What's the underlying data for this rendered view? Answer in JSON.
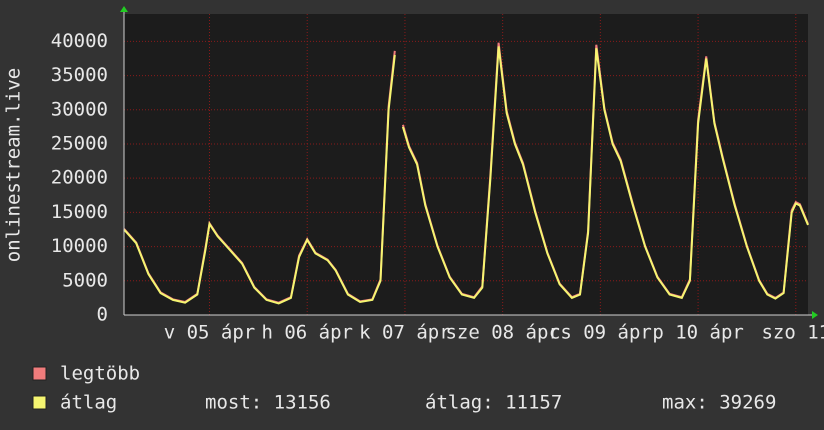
{
  "chart_data": {
    "type": "line",
    "ylabel": "onlinestream.live",
    "x": [
      0,
      3,
      6,
      9,
      12,
      15,
      18,
      20,
      21,
      23,
      26,
      29,
      32,
      35,
      38,
      41,
      43,
      45,
      47,
      50,
      52,
      55,
      58,
      61,
      63,
      65,
      66.5,
      67,
      68.5,
      70,
      72,
      74,
      77,
      80,
      83,
      86,
      88,
      90,
      92,
      94,
      96,
      98,
      101,
      104,
      107,
      110,
      112,
      114,
      116,
      118,
      120,
      122,
      125,
      128,
      131,
      134,
      137,
      139,
      141,
      143,
      145,
      147,
      150,
      153,
      156,
      158,
      160,
      162,
      163,
      164,
      165,
      166,
      168
    ],
    "series": [
      {
        "name": "legtöbb",
        "color": "#f07c7c",
        "values": [
          12600,
          10600,
          6100,
          3300,
          2300,
          1900,
          3100,
          9800,
          13400,
          11600,
          9600,
          7600,
          4100,
          2300,
          1800,
          2600,
          8700,
          11100,
          9100,
          8100,
          6600,
          3100,
          2000,
          2300,
          5200,
          30500,
          38600,
          null,
          27800,
          24700,
          22200,
          16200,
          10100,
          5600,
          3100,
          2600,
          4200,
          20500,
          39800,
          29800,
          25200,
          22200,
          15200,
          9100,
          4600,
          2600,
          3100,
          12300,
          39500,
          30200,
          25200,
          22700,
          16200,
          10100,
          5600,
          3100,
          2600,
          5200,
          28500,
          37800,
          28200,
          23200,
          16200,
          10100,
          5100,
          3100,
          2500,
          3300,
          9300,
          15300,
          16500,
          16200,
          13300
        ]
      },
      {
        "name": "átlag",
        "color": "#f5f571",
        "values": [
          12500,
          10500,
          6000,
          3200,
          2200,
          1800,
          3000,
          9500,
          13300,
          11500,
          9500,
          7500,
          4000,
          2200,
          1700,
          2500,
          8500,
          11000,
          9000,
          8000,
          6500,
          3000,
          1900,
          2200,
          5000,
          30000,
          38000,
          null,
          27500,
          24500,
          22000,
          16000,
          10000,
          5500,
          3000,
          2500,
          4000,
          20000,
          39269,
          29500,
          25000,
          22000,
          15000,
          9000,
          4500,
          2500,
          3000,
          12000,
          39000,
          30000,
          25000,
          22500,
          16000,
          10000,
          5500,
          3000,
          2500,
          5000,
          28000,
          37500,
          28000,
          23000,
          16000,
          10000,
          5000,
          3000,
          2400,
          3200,
          9000,
          15000,
          16300,
          16000,
          13156
        ]
      }
    ],
    "xlim": [
      0,
      168
    ],
    "xticks": [
      {
        "value": 21,
        "label": "v 05 ápr"
      },
      {
        "value": 45,
        "label": "h 06 ápr"
      },
      {
        "value": 69,
        "label": "k 07 ápr"
      },
      {
        "value": 93,
        "label": "sze 08 ápr"
      },
      {
        "value": 117,
        "label": "cs 09 ápr"
      },
      {
        "value": 141,
        "label": "p 10 ápr"
      },
      {
        "value": 165,
        "label": "szo 11"
      }
    ],
    "ylim": [
      0,
      44000
    ],
    "yticks": [
      0,
      5000,
      10000,
      15000,
      20000,
      25000,
      30000,
      35000,
      40000
    ],
    "grid": true,
    "stats": [
      "most: 13156",
      "átlag: 11157",
      "max: 39269"
    ]
  }
}
